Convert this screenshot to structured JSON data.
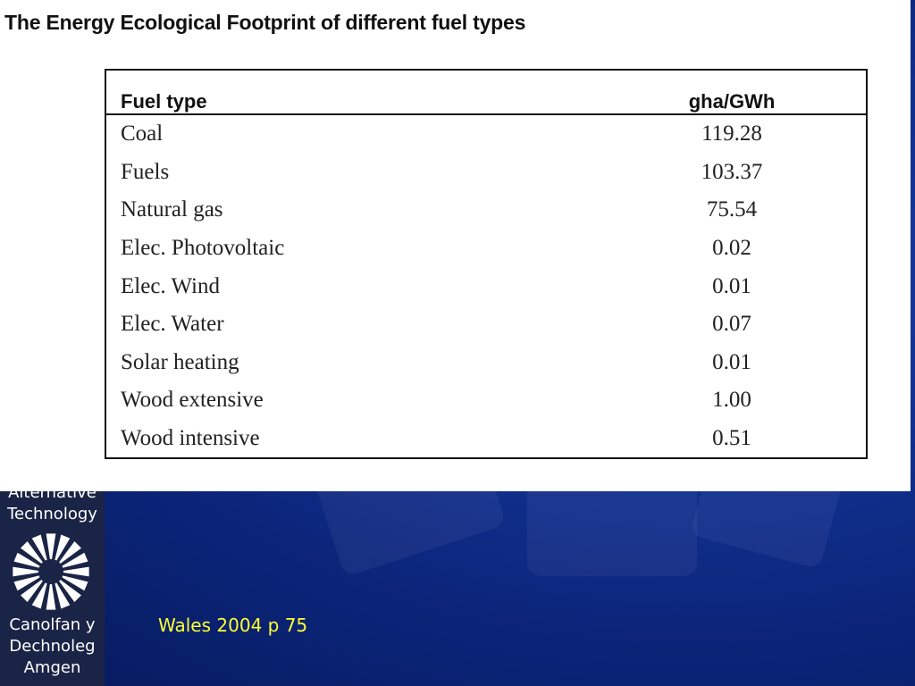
{
  "slide": {
    "title": "The Energy Ecological Footprint of different fuel types"
  },
  "table": {
    "headers": [
      "Fuel type",
      "gha/GWh"
    ],
    "rows": [
      [
        "Coal",
        "119.28"
      ],
      [
        "Fuels",
        "103.37"
      ],
      [
        "Natural gas",
        "75.54"
      ],
      [
        "Elec. Photovoltaic",
        "0.02"
      ],
      [
        "Elec. Wind",
        "0.01"
      ],
      [
        "Elec. Water",
        "0.07"
      ],
      [
        "Solar heating",
        "0.01"
      ],
      [
        "Wood extensive",
        "1.00"
      ],
      [
        "Wood intensive",
        "0.51"
      ]
    ]
  },
  "sidebar": {
    "top_text": "Alternative\nTechnology",
    "bottom_text": "Canolfan y\nDechnoleg\nAmgen",
    "logo_icon": "sunburst-logo-icon"
  },
  "citation": "Wales 2004 p 75",
  "colors": {
    "background": "#0b2478",
    "citation": "#ffff33",
    "sidebar": "#1a2446"
  }
}
